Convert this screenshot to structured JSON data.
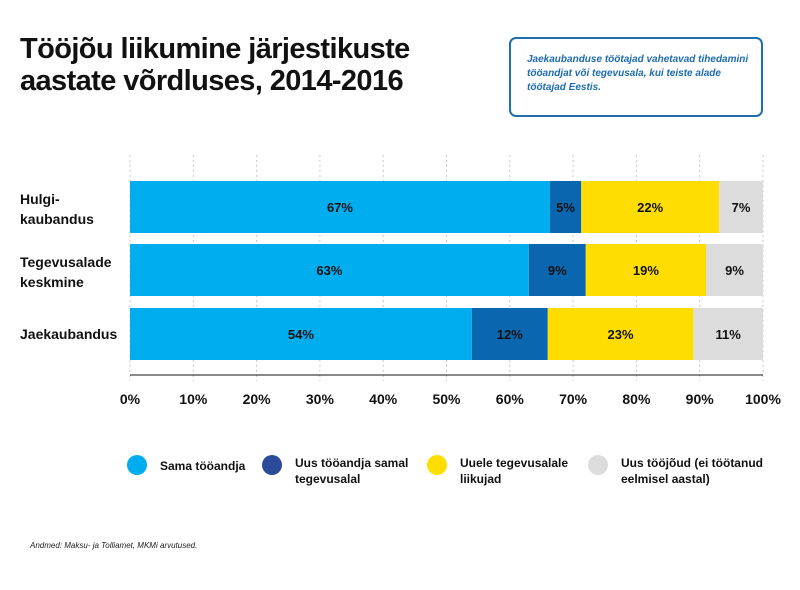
{
  "title": "Tööjõu liikumine järjestikuste aastate võrdluses, 2014-2016",
  "callout": "Jaekaubanduse töötajad vahetavad tihedamini tööandjat või tegevusala, kui teiste alade töötajad Eestis.",
  "source": "Andmed:  Maksu- ja Tolliamet, MKMi arvutused.",
  "chart_data": {
    "type": "bar",
    "orientation": "horizontal",
    "stacked": true,
    "categories": [
      "Hulgi-\nkaubandus",
      "Tegevusalade\nkeskmine",
      "Jaekaubandus"
    ],
    "series": [
      {
        "name": "Sama tööandja",
        "values": [
          67,
          63,
          54
        ],
        "labels": [
          "67%",
          "63%",
          "54%"
        ],
        "color": "#00adef"
      },
      {
        "name": "Uus tööandja samal tegevusalal",
        "values": [
          5,
          9,
          12
        ],
        "labels": [
          "5%",
          "9%",
          "12%"
        ],
        "color": "#0b66b0"
      },
      {
        "name": "Uuele tegevusalale liikujad",
        "values": [
          22,
          19,
          23
        ],
        "labels": [
          "22%",
          "19%",
          "23%"
        ],
        "color": "#ffdd00"
      },
      {
        "name": "Uus tööjõud (ei töötanud eelmisel aastal)",
        "values": [
          7,
          9,
          11
        ],
        "labels": [
          "7%",
          "9%",
          "11%"
        ],
        "color": "#dcdcdc"
      }
    ],
    "xlim": [
      0,
      100
    ],
    "xticks": [
      "0%",
      "10%",
      "20%",
      "30%",
      "40%",
      "50%",
      "60%",
      "70%",
      "80%",
      "90%",
      "100%"
    ],
    "grid": true,
    "legend_position": "bottom",
    "legend": [
      {
        "label": "Sama tööandja",
        "color": "#00adef"
      },
      {
        "label": "Uus tööandja samal tegevusalal",
        "color": "#2c4a9a"
      },
      {
        "label": "Uuele tegevusalale liikujad",
        "color": "#ffdd00"
      },
      {
        "label": "Uus tööjõud (ei töötanud eelmisel aastal)",
        "color": "#dcdcdc"
      }
    ]
  }
}
